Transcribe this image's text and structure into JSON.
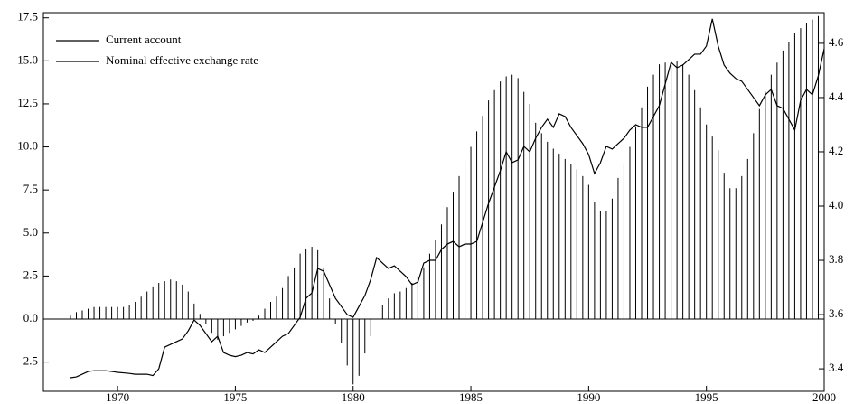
{
  "chart_data": {
    "type": "combo",
    "x": [
      1968,
      1968.25,
      1968.5,
      1968.75,
      1969,
      1969.25,
      1969.5,
      1969.75,
      1970,
      1970.25,
      1970.5,
      1970.75,
      1971,
      1971.25,
      1971.5,
      1971.75,
      1972,
      1972.25,
      1972.5,
      1972.75,
      1973,
      1973.25,
      1973.5,
      1973.75,
      1974,
      1974.25,
      1974.5,
      1974.75,
      1975,
      1975.25,
      1975.5,
      1975.75,
      1976,
      1976.25,
      1976.5,
      1976.75,
      1977,
      1977.25,
      1977.5,
      1977.75,
      1978,
      1978.25,
      1978.5,
      1978.75,
      1979,
      1979.25,
      1979.5,
      1979.75,
      1980,
      1980.25,
      1980.5,
      1980.75,
      1981,
      1981.25,
      1981.5,
      1981.75,
      1982,
      1982.25,
      1982.5,
      1982.75,
      1983,
      1983.25,
      1983.5,
      1983.75,
      1984,
      1984.25,
      1984.5,
      1984.75,
      1985,
      1985.25,
      1985.5,
      1985.75,
      1986,
      1986.25,
      1986.5,
      1986.75,
      1987,
      1987.25,
      1987.5,
      1987.75,
      1988,
      1988.25,
      1988.5,
      1988.75,
      1989,
      1989.25,
      1989.5,
      1989.75,
      1990,
      1990.25,
      1990.5,
      1990.75,
      1991,
      1991.25,
      1991.5,
      1991.75,
      1992,
      1992.25,
      1992.5,
      1992.75,
      1993,
      1993.25,
      1993.5,
      1993.75,
      1994,
      1994.25,
      1994.5,
      1994.75,
      1995,
      1995.25,
      1995.5,
      1995.75,
      1996,
      1996.25,
      1996.5,
      1996.75,
      1997,
      1997.25,
      1997.5,
      1997.75,
      1998,
      1998.25,
      1998.5,
      1998.75,
      1999,
      1999.25,
      1999.5,
      1999.75,
      2000
    ],
    "series": [
      {
        "name": "Current account",
        "type": "bar",
        "color": "#000000",
        "values": [
          0.2,
          0.4,
          0.5,
          0.6,
          0.7,
          0.7,
          0.7,
          0.7,
          0.7,
          0.7,
          0.8,
          1.0,
          1.3,
          1.6,
          1.9,
          2.1,
          2.2,
          2.3,
          2.2,
          2.0,
          1.6,
          0.9,
          0.3,
          -0.3,
          -0.8,
          -1.2,
          -1.0,
          -0.8,
          -0.6,
          -0.4,
          -0.2,
          -0.1,
          0.2,
          0.6,
          1.0,
          1.3,
          1.8,
          2.5,
          3.0,
          3.8,
          4.1,
          4.2,
          4.0,
          3.0,
          1.2,
          -0.3,
          -1.4,
          -2.7,
          -3.8,
          -3.3,
          -2.0,
          -1.0,
          0.0,
          0.8,
          1.2,
          1.5,
          1.6,
          1.8,
          2.1,
          2.5,
          3.0,
          3.8,
          4.6,
          5.5,
          6.5,
          7.4,
          8.3,
          9.2,
          10.0,
          10.9,
          11.8,
          12.7,
          13.3,
          13.8,
          14.1,
          14.2,
          14.0,
          13.2,
          12.5,
          11.4,
          10.8,
          10.3,
          9.9,
          9.6,
          9.3,
          9.0,
          8.7,
          8.3,
          7.8,
          6.8,
          6.3,
          6.3,
          7.0,
          8.2,
          9.0,
          10.0,
          11.2,
          12.3,
          13.5,
          14.2,
          14.8,
          14.9,
          15.0,
          15.0,
          14.8,
          14.2,
          13.3,
          12.3,
          11.3,
          10.6,
          9.8,
          8.5,
          7.6,
          7.6,
          8.3,
          9.3,
          10.8,
          12.2,
          13.2,
          14.2,
          14.9,
          15.6,
          16.1,
          16.6,
          16.9,
          17.2,
          17.4,
          17.6,
          17.7
        ]
      },
      {
        "name": "Nominal effective exchange rate",
        "type": "line",
        "axis": "y2",
        "color": "#000000",
        "values": [
          3.367,
          3.37,
          3.38,
          3.39,
          3.393,
          3.393,
          3.393,
          3.39,
          3.387,
          3.385,
          3.383,
          3.38,
          3.38,
          3.38,
          3.375,
          3.4,
          3.48,
          3.49,
          3.5,
          3.51,
          3.54,
          3.58,
          3.56,
          3.53,
          3.5,
          3.52,
          3.46,
          3.45,
          3.445,
          3.45,
          3.46,
          3.455,
          3.47,
          3.46,
          3.48,
          3.5,
          3.52,
          3.53,
          3.56,
          3.59,
          3.66,
          3.68,
          3.77,
          3.76,
          3.71,
          3.66,
          3.63,
          3.6,
          3.59,
          3.63,
          3.67,
          3.73,
          3.81,
          3.79,
          3.77,
          3.78,
          3.76,
          3.74,
          3.71,
          3.72,
          3.79,
          3.8,
          3.8,
          3.84,
          3.86,
          3.87,
          3.85,
          3.86,
          3.86,
          3.87,
          3.94,
          4.01,
          4.07,
          4.13,
          4.2,
          4.16,
          4.17,
          4.22,
          4.2,
          4.25,
          4.29,
          4.32,
          4.29,
          4.34,
          4.33,
          4.29,
          4.26,
          4.23,
          4.19,
          4.12,
          4.16,
          4.22,
          4.21,
          4.23,
          4.25,
          4.28,
          4.3,
          4.29,
          4.29,
          4.33,
          4.37,
          4.45,
          4.53,
          4.51,
          4.52,
          4.54,
          4.56,
          4.56,
          4.59,
          4.69,
          4.59,
          4.52,
          4.49,
          4.47,
          4.46,
          4.43,
          4.4,
          4.37,
          4.41,
          4.43,
          4.37,
          4.36,
          4.32,
          4.28,
          4.39,
          4.43,
          4.41,
          4.48,
          4.58
        ]
      }
    ],
    "xlim": [
      1966.85,
      2000
    ],
    "xticks": [
      1970,
      1975,
      1980,
      1985,
      1990,
      1995,
      2000
    ],
    "ylim": [
      -4.2,
      17.8
    ],
    "yticks": [
      -2.5,
      {
        "value": 0,
        "label": "0.0"
      },
      2.5,
      {
        "value": 5,
        "label": "5.0"
      },
      7.5,
      {
        "value": 10,
        "label": "10.0"
      },
      12.5,
      {
        "value": 15,
        "label": "15.0"
      },
      17.5
    ],
    "y2lim": [
      3.317,
      4.713
    ],
    "y2ticks": [
      3.4,
      3.6,
      3.8,
      {
        "value": 4,
        "label": "4.0"
      },
      4.2,
      4.4,
      4.6
    ],
    "legend": "upper left",
    "grid": false
  }
}
